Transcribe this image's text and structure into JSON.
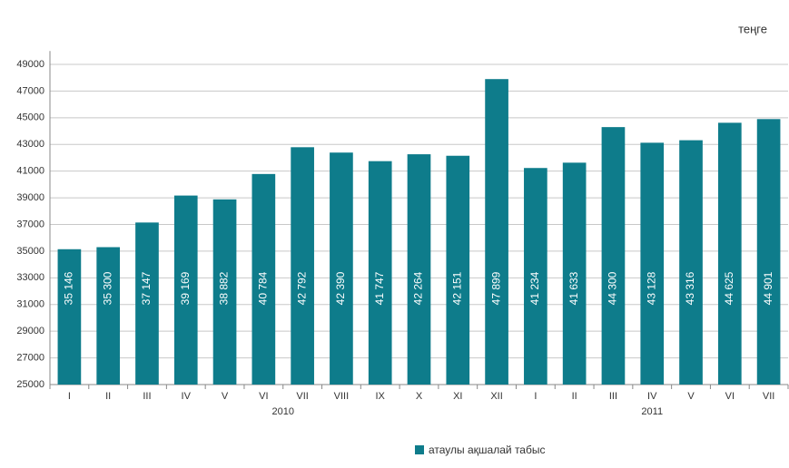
{
  "chart_data": {
    "type": "bar",
    "unit_label": "теңге",
    "ylim": [
      25000,
      50000
    ],
    "yticks": [
      25000,
      27000,
      29000,
      31000,
      33000,
      35000,
      37000,
      39000,
      41000,
      43000,
      45000,
      47000,
      49000
    ],
    "grid": true,
    "legend": "bottom",
    "series": [
      {
        "name": "атаулы ақшалай табыс",
        "color": "#0e7c8b"
      }
    ],
    "groups": [
      {
        "label": "2010",
        "categories": [
          "I",
          "II",
          "III",
          "IV",
          "V",
          "VI",
          "VII",
          "VIII",
          "IX",
          "X",
          "XI",
          "XII"
        ],
        "values": [
          35146,
          35300,
          37147,
          39169,
          38882,
          40784,
          42792,
          42390,
          41747,
          42264,
          42151,
          47899
        ],
        "value_labels": [
          "35 146",
          "35 300",
          "37 147",
          "39 169",
          "38 882",
          "40 784",
          "42 792",
          "42 390",
          "41 747",
          "42 264",
          "42 151",
          "47 899"
        ]
      },
      {
        "label": "2011",
        "categories": [
          "I",
          "II",
          "III",
          "IV",
          "V",
          "VI",
          "VII"
        ],
        "values": [
          41234,
          41633,
          44300,
          43128,
          43316,
          44625,
          44901
        ],
        "value_labels": [
          "41 234",
          "41 633",
          "44 300",
          "43 128",
          "43 316",
          "44 625",
          "44 901"
        ]
      }
    ]
  }
}
